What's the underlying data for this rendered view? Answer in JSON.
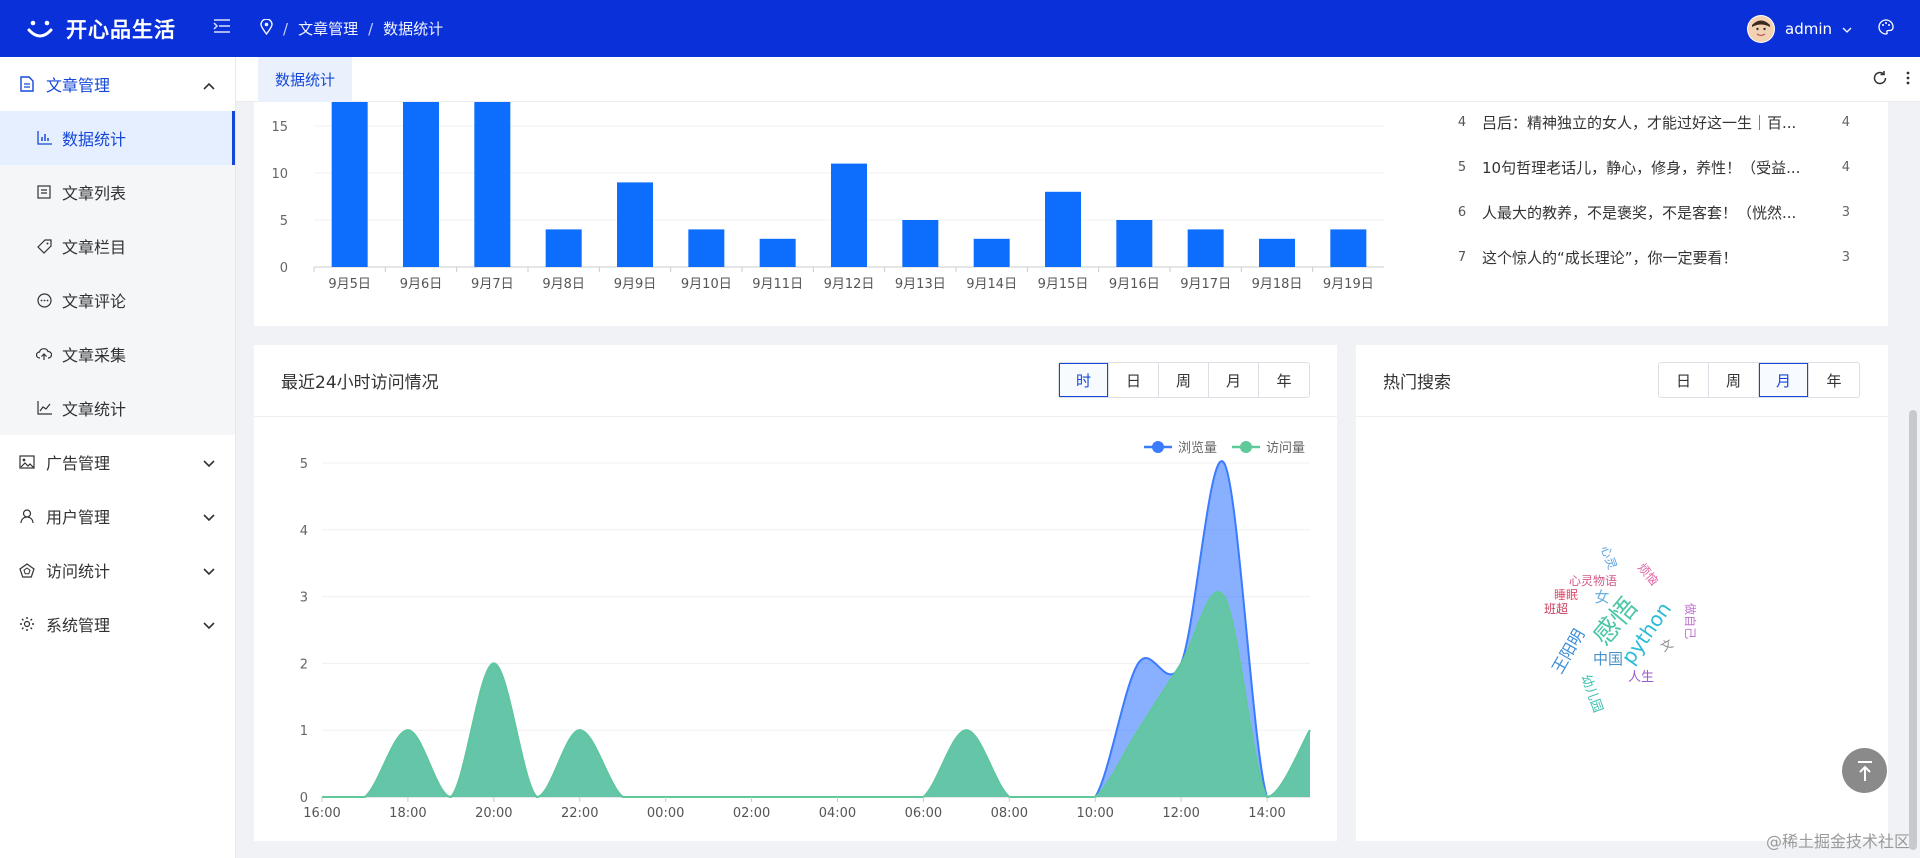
{
  "app": {
    "title": "开心品生活",
    "user": "admin"
  },
  "breadcrumb": [
    "文章管理",
    "数据统计"
  ],
  "sidebar": {
    "groups": [
      {
        "label": "文章管理",
        "expanded": true,
        "items": [
          {
            "label": "数据统计",
            "active": true
          },
          {
            "label": "文章列表"
          },
          {
            "label": "文章栏目"
          },
          {
            "label": "文章评论"
          },
          {
            "label": "文章采集"
          },
          {
            "label": "文章统计"
          }
        ]
      },
      {
        "label": "广告管理"
      },
      {
        "label": "用户管理"
      },
      {
        "label": "访问统计"
      },
      {
        "label": "系统管理"
      }
    ]
  },
  "tabs": [
    {
      "label": "数据统计"
    }
  ],
  "top_chart": {
    "categories": [
      "9月5日",
      "9月6日",
      "9月7日",
      "9月8日",
      "9月9日",
      "9月10日",
      "9月11日",
      "9月12日",
      "9月13日",
      "9月14日",
      "9月15日",
      "9月16日",
      "9月17日",
      "9月18日",
      "9月19日"
    ],
    "values": [
      18,
      18,
      18,
      4,
      9,
      4,
      3,
      11,
      5,
      3,
      8,
      5,
      4,
      3,
      4
    ],
    "yticks": [
      "0",
      "5",
      "10",
      "15"
    ]
  },
  "ranking": [
    {
      "no": "4",
      "title": "吕后：精神独立的女人，才能过好这一生｜百...",
      "value": "4"
    },
    {
      "no": "5",
      "title": "10句哲理老话儿，静心，修身，养性！（受益...",
      "value": "4"
    },
    {
      "no": "6",
      "title": "人最大的教养，不是褒奖，不是客套！（恍然...",
      "value": "3"
    },
    {
      "no": "7",
      "title": "这个惊人的“成长理论”，你一定要看！",
      "value": "3"
    }
  ],
  "visits": {
    "title": "最近24小时访问情况",
    "periods": [
      "时",
      "日",
      "周",
      "月",
      "年"
    ],
    "active_period": "时",
    "legend": [
      "浏览量",
      "访问量"
    ]
  },
  "hot_search": {
    "title": "热门搜索",
    "periods": [
      "日",
      "周",
      "月",
      "年"
    ],
    "active_period": "月",
    "words": [
      {
        "text": "感悟",
        "color": "#4ac7a8"
      },
      {
        "text": "python",
        "color": "#2bbbd8"
      },
      {
        "text": "王阳明",
        "color": "#3a8dd8"
      },
      {
        "text": "女",
        "color": "#6bb0e0"
      },
      {
        "text": "中国",
        "color": "#4a90c8"
      },
      {
        "text": "人生",
        "color": "#a05ad0"
      },
      {
        "text": "心灵物语",
        "color": "#d05a8a"
      },
      {
        "text": "睡眠",
        "color": "#e04a6a"
      },
      {
        "text": "班超",
        "color": "#c83a5a"
      },
      {
        "text": "幼儿园",
        "color": "#3ac0b0"
      },
      {
        "text": "心灵",
        "color": "#5aa0e0"
      },
      {
        "text": "烦恼",
        "color": "#e060a0"
      },
      {
        "text": "做自己",
        "color": "#c070d0"
      },
      {
        "text": "文",
        "color": "#888888"
      }
    ]
  },
  "chart_data": [
    {
      "type": "bar",
      "categories": [
        "9月5日",
        "9月6日",
        "9月7日",
        "9月8日",
        "9月9日",
        "9月10日",
        "9月11日",
        "9月12日",
        "9月13日",
        "9月14日",
        "9月15日",
        "9月16日",
        "9月17日",
        "9月18日",
        "9月19日"
      ],
      "values": [
        18,
        18,
        18,
        4,
        9,
        4,
        3,
        11,
        5,
        3,
        8,
        5,
        4,
        3,
        4
      ],
      "yticks": [
        "0",
        "5",
        "10",
        "15"
      ]
    },
    {
      "type": "area",
      "x": [
        "16:00",
        "17:00",
        "18:00",
        "19:00",
        "20:00",
        "21:00",
        "22:00",
        "23:00",
        "00:00",
        "01:00",
        "02:00",
        "03:00",
        "04:00",
        "05:00",
        "06:00",
        "07:00",
        "08:00",
        "09:00",
        "10:00",
        "11:00",
        "12:00",
        "13:00",
        "14:00",
        "15:00"
      ],
      "xticks": [
        "16:00",
        "18:00",
        "20:00",
        "22:00",
        "00:00",
        "02:00",
        "04:00",
        "06:00",
        "08:00",
        "10:00",
        "12:00",
        "14:00"
      ],
      "series": [
        {
          "name": "浏览量",
          "color": "#3b7bff",
          "values": [
            0,
            0,
            1,
            0,
            2,
            0,
            1,
            0,
            0,
            0,
            0,
            0,
            0,
            0,
            0,
            1,
            0,
            0,
            0,
            2,
            2,
            5,
            0,
            1
          ]
        },
        {
          "name": "访问量",
          "color": "#5fc99a",
          "values": [
            0,
            0,
            1,
            0,
            2,
            0,
            1,
            0,
            0,
            0,
            0,
            0,
            0,
            0,
            0,
            1,
            0,
            0,
            0,
            1,
            2,
            3,
            0,
            1
          ]
        }
      ],
      "ylim": [
        0,
        5
      ],
      "yticks": [
        "0",
        "1",
        "2",
        "3",
        "4",
        "5"
      ]
    }
  ],
  "watermark": "@稀土掘金技术社区"
}
